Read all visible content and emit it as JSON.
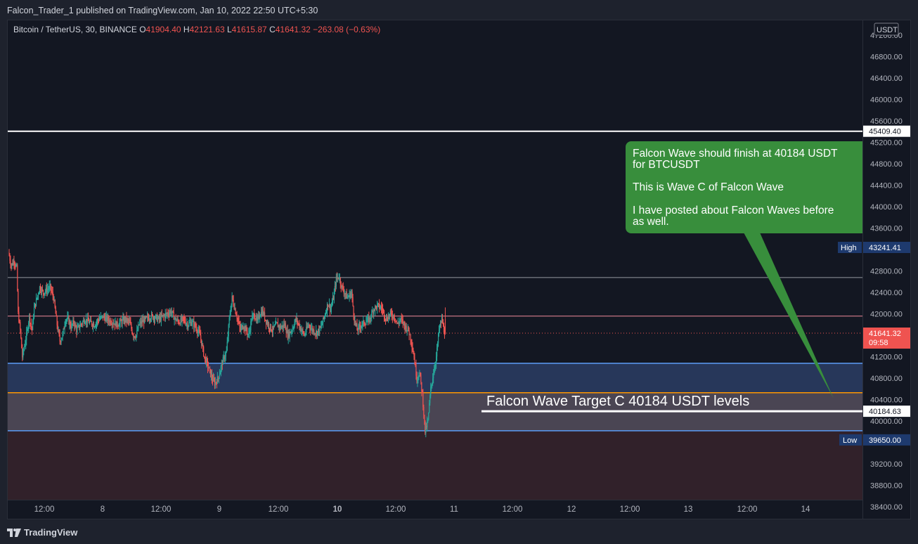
{
  "header": {
    "publisher_line": "Falcon_Trader_1 published on TradingView.com, Jan 10, 2022 22:50 UTC+5:30"
  },
  "legend": {
    "symbol": "Bitcoin / TetherUS, 30, BINANCE",
    "o_label": "O",
    "o_value": "41904.40",
    "h_label": "H",
    "h_value": "42121.63",
    "l_label": "L",
    "l_value": "41615.87",
    "c_label": "C",
    "c_value": "41641.32",
    "change": "−263.08 (−0.63%)"
  },
  "price_axis": {
    "currency_badge": "USDT",
    "ticks": [
      "47200.00",
      "46800.00",
      "46400.00",
      "46000.00",
      "45600.00",
      "45200.00",
      "44800.00",
      "44400.00",
      "44000.00",
      "43600.00",
      "42800.00",
      "42400.00",
      "42000.00",
      "41200.00",
      "40800.00",
      "40400.00",
      "40000.00",
      "39200.00",
      "38800.00",
      "38400.00"
    ],
    "labels": {
      "white_line": "45409.40",
      "high_tag": "High",
      "high_value": "43241.41",
      "current_price": "41641.32",
      "countdown": "09:58",
      "target": "40184.63",
      "low_tag": "Low",
      "low_value": "39650.00"
    }
  },
  "time_axis": {
    "ticks": [
      {
        "label": "12:00",
        "bold": false
      },
      {
        "label": "8",
        "bold": false
      },
      {
        "label": "12:00",
        "bold": false
      },
      {
        "label": "9",
        "bold": false
      },
      {
        "label": "12:00",
        "bold": false
      },
      {
        "label": "10",
        "bold": true
      },
      {
        "label": "12:00",
        "bold": false
      },
      {
        "label": "11",
        "bold": false
      },
      {
        "label": "12:00",
        "bold": false
      },
      {
        "label": "12",
        "bold": false
      },
      {
        "label": "12:00",
        "bold": false
      },
      {
        "label": "13",
        "bold": false
      },
      {
        "label": "12:00",
        "bold": false
      },
      {
        "label": "14",
        "bold": false
      }
    ]
  },
  "annotations": {
    "callout_lines": [
      "Falcon Wave should finish at 40184 USDT",
      "for BTCUSDT",
      "",
      "This is Wave C of Falcon Wave",
      "",
      "I have posted about Falcon Waves before",
      "as well."
    ],
    "target_text": "Falcon Wave Target C 40184 USDT levels"
  },
  "colors": {
    "bull": "#26a69a",
    "bear": "#ef5350",
    "callout_bg": "#388e3c",
    "zone_blue": "#5b9cf6",
    "zone_orange": "#ff9800"
  },
  "branding": {
    "logo_text": "TradingView"
  },
  "chart_data": {
    "type": "candlestick",
    "symbol": "BTCUSDT",
    "timeframe": "30",
    "ylim": [
      38200,
      47300
    ],
    "levels": {
      "white_line": 45409.4,
      "thin_line": 42680,
      "pink_line": 41960,
      "blue_upper": 41080,
      "orange": 40530,
      "target": 40184.63,
      "blue_lower": 39820,
      "high": 43241.41,
      "low": 39650.0,
      "current": 41641.32
    },
    "ohlc_legend": {
      "open": 41904.4,
      "high": 42121.63,
      "low": 41615.87,
      "close": 41641.32
    },
    "price_path": [
      [
        0,
        43150
      ],
      [
        4,
        42900
      ],
      [
        8,
        43000
      ],
      [
        12,
        42850
      ],
      [
        14,
        42000
      ],
      [
        17,
        41700
      ],
      [
        20,
        41200
      ],
      [
        26,
        41600
      ],
      [
        30,
        41950
      ],
      [
        34,
        41700
      ],
      [
        37,
        42100
      ],
      [
        40,
        42250
      ],
      [
        45,
        42500
      ],
      [
        50,
        42400
      ],
      [
        55,
        42450
      ],
      [
        60,
        42500
      ],
      [
        65,
        42300
      ],
      [
        70,
        41800
      ],
      [
        74,
        41500
      ],
      [
        78,
        41600
      ],
      [
        82,
        41900
      ],
      [
        86,
        41900
      ],
      [
        90,
        41750
      ],
      [
        94,
        41850
      ],
      [
        98,
        41700
      ],
      [
        104,
        41800
      ],
      [
        110,
        41900
      ],
      [
        116,
        41850
      ],
      [
        124,
        41800
      ],
      [
        130,
        41900
      ],
      [
        136,
        41950
      ],
      [
        142,
        41900
      ],
      [
        150,
        41850
      ],
      [
        156,
        41800
      ],
      [
        162,
        41850
      ],
      [
        168,
        41900
      ],
      [
        174,
        41850
      ],
      [
        180,
        41600
      ],
      [
        184,
        41600
      ],
      [
        188,
        41800
      ],
      [
        192,
        41850
      ],
      [
        198,
        41900
      ],
      [
        204,
        41950
      ],
      [
        210,
        41950
      ],
      [
        216,
        41900
      ],
      [
        222,
        41950
      ],
      [
        228,
        42000
      ],
      [
        234,
        42050
      ],
      [
        240,
        41900
      ],
      [
        246,
        41850
      ],
      [
        252,
        41900
      ],
      [
        258,
        41800
      ],
      [
        264,
        41850
      ],
      [
        270,
        41750
      ],
      [
        276,
        41600
      ],
      [
        282,
        41200
      ],
      [
        288,
        41000
      ],
      [
        293,
        40800
      ],
      [
        297,
        40700
      ],
      [
        302,
        40800
      ],
      [
        308,
        41100
      ],
      [
        314,
        41300
      ],
      [
        318,
        41900
      ],
      [
        322,
        42300
      ],
      [
        326,
        42100
      ],
      [
        330,
        41900
      ],
      [
        334,
        41700
      ],
      [
        338,
        41800
      ],
      [
        342,
        41700
      ],
      [
        346,
        41600
      ],
      [
        350,
        41900
      ],
      [
        354,
        42000
      ],
      [
        358,
        41850
      ],
      [
        362,
        42000
      ],
      [
        366,
        42050
      ],
      [
        370,
        41900
      ],
      [
        374,
        41800
      ],
      [
        380,
        41700
      ],
      [
        386,
        41800
      ],
      [
        392,
        41750
      ],
      [
        398,
        41800
      ],
      [
        402,
        41600
      ],
      [
        408,
        41700
      ],
      [
        414,
        41900
      ],
      [
        420,
        41750
      ],
      [
        426,
        41600
      ],
      [
        432,
        41800
      ],
      [
        438,
        41700
      ],
      [
        444,
        41650
      ],
      [
        450,
        41750
      ],
      [
        456,
        42000
      ],
      [
        460,
        42200
      ],
      [
        464,
        42100
      ],
      [
        468,
        42300
      ],
      [
        472,
        42650
      ],
      [
        476,
        42700
      ],
      [
        480,
        42500
      ],
      [
        484,
        42400
      ],
      [
        488,
        42300
      ],
      [
        494,
        42400
      ],
      [
        498,
        41900
      ],
      [
        502,
        41700
      ],
      [
        508,
        41800
      ],
      [
        514,
        41850
      ],
      [
        520,
        41900
      ],
      [
        526,
        42100
      ],
      [
        532,
        42150
      ],
      [
        538,
        42100
      ],
      [
        544,
        41900
      ],
      [
        550,
        42000
      ],
      [
        556,
        41950
      ],
      [
        560,
        41800
      ],
      [
        564,
        41900
      ],
      [
        568,
        41850
      ],
      [
        572,
        41750
      ],
      [
        576,
        41700
      ],
      [
        580,
        41500
      ],
      [
        584,
        41200
      ],
      [
        588,
        40800
      ],
      [
        592,
        40900
      ],
      [
        596,
        40500
      ],
      [
        600,
        39800
      ],
      [
        604,
        40000
      ],
      [
        608,
        40600
      ],
      [
        612,
        40900
      ],
      [
        616,
        41200
      ],
      [
        620,
        41700
      ],
      [
        624,
        41900
      ],
      [
        628,
        41641
      ]
    ]
  }
}
